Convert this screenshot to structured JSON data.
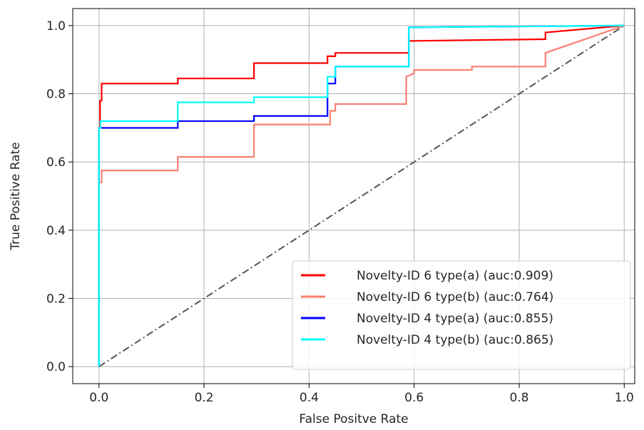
{
  "chart_data": {
    "type": "line",
    "title": "",
    "xlabel": "False Positve Rate",
    "ylabel": "True Positive Rate",
    "xlim": [
      -0.05,
      1.02
    ],
    "ylim": [
      -0.05,
      1.05
    ],
    "x_ticks": [
      0.0,
      0.2,
      0.4,
      0.6,
      0.8,
      1.0
    ],
    "y_ticks": [
      0.0,
      0.2,
      0.4,
      0.6,
      0.8,
      1.0
    ],
    "x_tick_labels": [
      "0.0",
      "0.2",
      "0.4",
      "0.6",
      "0.8",
      "1.0"
    ],
    "y_tick_labels": [
      "0.0",
      "0.2",
      "0.4",
      "0.6",
      "0.8",
      "1.0"
    ],
    "grid": true,
    "legend_position": "lower-right",
    "diagonal": {
      "x": [
        0,
        1
      ],
      "y": [
        0,
        1
      ],
      "color": "#555555",
      "style": "dash-dot"
    },
    "series": [
      {
        "name": "Novelty-ID 6 type(a) (auc:0.909)",
        "color": "#ff0000",
        "x": [
          0,
          0,
          0.002,
          0.002,
          0.005,
          0.005,
          0.15,
          0.15,
          0.295,
          0.295,
          0.435,
          0.435,
          0.45,
          0.45,
          0.59,
          0.59,
          0.85,
          0.85,
          1.0
        ],
        "y": [
          0,
          0.7,
          0.7,
          0.78,
          0.78,
          0.83,
          0.83,
          0.845,
          0.845,
          0.89,
          0.89,
          0.91,
          0.91,
          0.92,
          0.92,
          0.955,
          0.96,
          0.98,
          1.0
        ]
      },
      {
        "name": "Novelty-ID 6 type(b) (auc:0.764)",
        "color": "#fa8072",
        "x": [
          0,
          0,
          0.005,
          0.005,
          0.15,
          0.15,
          0.295,
          0.295,
          0.44,
          0.44,
          0.45,
          0.45,
          0.585,
          0.585,
          0.6,
          0.6,
          0.71,
          0.71,
          0.85,
          0.85,
          1.0
        ],
        "y": [
          0,
          0.54,
          0.54,
          0.575,
          0.575,
          0.615,
          0.615,
          0.71,
          0.71,
          0.75,
          0.75,
          0.77,
          0.77,
          0.85,
          0.86,
          0.87,
          0.87,
          0.88,
          0.88,
          0.92,
          1.0
        ]
      },
      {
        "name": "Novelty-ID 4 type(a) (auc:0.855)",
        "color": "#0000ff",
        "x": [
          0,
          0,
          0.003,
          0.003,
          0.15,
          0.15,
          0.295,
          0.295,
          0.435,
          0.435,
          0.45,
          0.45,
          0.59,
          0.59,
          1.0
        ],
        "y": [
          0,
          0.7,
          0.7,
          0.7,
          0.7,
          0.72,
          0.72,
          0.735,
          0.735,
          0.83,
          0.83,
          0.88,
          0.88,
          0.995,
          1.0
        ]
      },
      {
        "name": "Novelty-ID 4 type(b) (auc:0.865)",
        "color": "#00ffff",
        "x": [
          0,
          0,
          0.003,
          0.003,
          0.15,
          0.15,
          0.295,
          0.295,
          0.435,
          0.435,
          0.45,
          0.45,
          0.59,
          0.59,
          1.0
        ],
        "y": [
          0,
          0.7,
          0.7,
          0.72,
          0.72,
          0.775,
          0.775,
          0.79,
          0.79,
          0.85,
          0.85,
          0.88,
          0.88,
          0.995,
          1.0
        ]
      }
    ]
  }
}
